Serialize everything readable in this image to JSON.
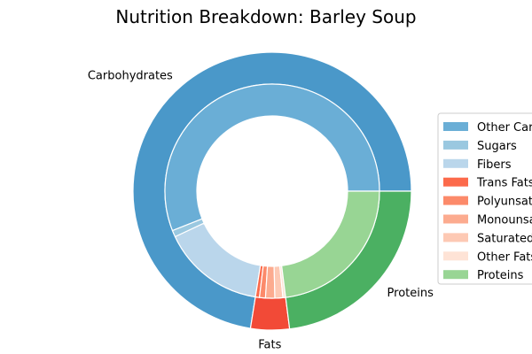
{
  "chart_data": {
    "type": "pie",
    "title": "Nutrition Breakdown:  Barley Soup",
    "style": "nested-donut",
    "legend_position": "right",
    "outer_ring": [
      {
        "name": "Carbohydrates",
        "value": 72.5,
        "color": "#4a98c9"
      },
      {
        "name": "Fats",
        "value": 4.5,
        "color": "#f24a37"
      },
      {
        "name": "Proteins",
        "value": 23.0,
        "color": "#4bb062"
      }
    ],
    "inner_ring": [
      {
        "name": "Other Carbohydrates",
        "value": 56.0,
        "color": "#6aaed6"
      },
      {
        "name": "Sugars",
        "value": 1.0,
        "color": "#9ac8e0"
      },
      {
        "name": "Fibers",
        "value": 15.5,
        "color": "#bad6eb"
      },
      {
        "name": "Trans Fats",
        "value": 0.6,
        "color": "#fc6a4b"
      },
      {
        "name": "Polyunsaturated Fats",
        "value": 0.9,
        "color": "#fc8a6a"
      },
      {
        "name": "Monounsaturated Fats",
        "value": 1.4,
        "color": "#fcab8f"
      },
      {
        "name": "Saturated Fats",
        "value": 1.2,
        "color": "#fdc9b4"
      },
      {
        "name": "Other Fats",
        "value": 0.4,
        "color": "#fee3d6"
      },
      {
        "name": "Proteins",
        "value": 23.0,
        "color": "#98d594"
      }
    ]
  }
}
